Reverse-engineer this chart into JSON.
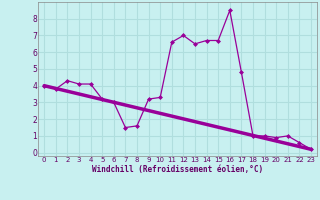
{
  "xlabel": "Windchill (Refroidissement éolien,°C)",
  "background_color": "#c8f0f0",
  "line_color": "#990099",
  "marker_color": "#990099",
  "grid_color": "#b0dede",
  "axis_label_color": "#660066",
  "tick_label_color": "#660066",
  "spine_color": "#888888",
  "xlim": [
    -0.5,
    23.5
  ],
  "ylim": [
    -0.2,
    9.0
  ],
  "xticks": [
    0,
    1,
    2,
    3,
    4,
    5,
    6,
    7,
    8,
    9,
    10,
    11,
    12,
    13,
    14,
    15,
    16,
    17,
    18,
    19,
    20,
    21,
    22,
    23
  ],
  "yticks": [
    0,
    1,
    2,
    3,
    4,
    5,
    6,
    7,
    8
  ],
  "series1_x": [
    0,
    1,
    2,
    3,
    4,
    5,
    6,
    7,
    8,
    9,
    10,
    11,
    12,
    13,
    14,
    15,
    16,
    17,
    18,
    19,
    20,
    21,
    22,
    23
  ],
  "series1_y": [
    4.0,
    3.8,
    4.3,
    4.1,
    4.1,
    3.2,
    3.0,
    1.5,
    1.6,
    3.2,
    3.3,
    6.6,
    7.0,
    6.5,
    6.7,
    6.7,
    8.5,
    4.8,
    1.0,
    1.0,
    0.9,
    1.0,
    0.6,
    0.2
  ],
  "series2_x": [
    0,
    23
  ],
  "series2_y": [
    4.0,
    0.2
  ]
}
